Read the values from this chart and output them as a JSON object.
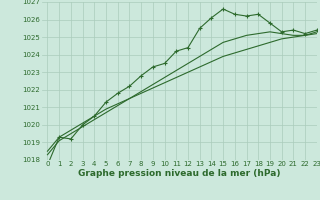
{
  "line1_x": [
    0,
    1,
    2,
    3,
    4,
    5,
    6,
    7,
    8,
    9,
    10,
    11,
    12,
    13,
    14,
    15,
    16,
    17,
    18,
    19,
    20,
    21,
    22,
    23
  ],
  "line1_y": [
    1017.7,
    1019.3,
    1019.2,
    1020.0,
    1020.5,
    1021.3,
    1021.8,
    1022.2,
    1022.8,
    1023.3,
    1023.5,
    1024.2,
    1024.4,
    1025.5,
    1026.1,
    1026.6,
    1026.3,
    1026.2,
    1026.3,
    1025.8,
    1025.3,
    1025.4,
    1025.2,
    1025.4
  ],
  "line2_x": [
    0,
    1,
    2,
    3,
    4,
    5,
    6,
    7,
    8,
    9,
    10,
    11,
    12,
    13,
    14,
    15,
    16,
    17,
    18,
    19,
    20,
    21,
    22,
    23
  ],
  "line2_y": [
    1018.3,
    1019.1,
    1019.5,
    1019.9,
    1020.3,
    1020.7,
    1021.1,
    1021.5,
    1021.9,
    1022.3,
    1022.7,
    1023.1,
    1023.5,
    1023.9,
    1024.3,
    1024.7,
    1024.9,
    1025.1,
    1025.2,
    1025.3,
    1025.2,
    1025.1,
    1025.1,
    1025.2
  ],
  "line3_x": [
    0,
    1,
    2,
    3,
    4,
    5,
    6,
    7,
    8,
    9,
    10,
    11,
    12,
    13,
    14,
    15,
    16,
    17,
    18,
    19,
    20,
    21,
    22,
    23
  ],
  "line3_y": [
    1018.5,
    1019.3,
    1019.7,
    1020.1,
    1020.5,
    1020.9,
    1021.2,
    1021.5,
    1021.8,
    1022.1,
    1022.4,
    1022.7,
    1023.0,
    1023.3,
    1023.6,
    1023.9,
    1024.1,
    1024.3,
    1024.5,
    1024.7,
    1024.9,
    1025.0,
    1025.1,
    1025.3
  ],
  "line_color": "#2d6a2d",
  "bg_color": "#cce8dc",
  "grid_color": "#aaccbb",
  "xlabel": "Graphe pression niveau de la mer (hPa)",
  "ylim": [
    1018,
    1027
  ],
  "xlim": [
    -0.5,
    23
  ],
  "yticks": [
    1018,
    1019,
    1020,
    1021,
    1022,
    1023,
    1024,
    1025,
    1026,
    1027
  ],
  "xticks": [
    0,
    1,
    2,
    3,
    4,
    5,
    6,
    7,
    8,
    9,
    10,
    11,
    12,
    13,
    14,
    15,
    16,
    17,
    18,
    19,
    20,
    21,
    22,
    23
  ],
  "tick_fontsize": 5.0,
  "xlabel_fontsize": 6.5
}
